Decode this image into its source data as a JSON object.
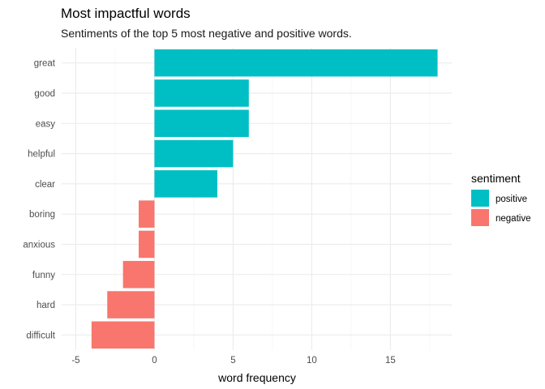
{
  "chart_data": {
    "type": "bar",
    "orientation": "horizontal",
    "title": "Most impactful words",
    "subtitle": "Sentiments of the top 5 most negative and positive words.",
    "xlabel": "word frequency",
    "ylabel": "",
    "xlim": [
      -5,
      18
    ],
    "xticks": [
      -5,
      0,
      5,
      10,
      15
    ],
    "grid": true,
    "legend": {
      "title": "sentiment",
      "position": "right"
    },
    "categories": [
      "great",
      "good",
      "easy",
      "helpful",
      "clear",
      "boring",
      "anxious",
      "funny",
      "hard",
      "difficult"
    ],
    "values": [
      18,
      6,
      6,
      5,
      4,
      -1,
      -1,
      -2,
      -3,
      -4
    ],
    "sentiment": [
      "positive",
      "positive",
      "positive",
      "positive",
      "positive",
      "negative",
      "negative",
      "negative",
      "negative",
      "negative"
    ],
    "series": [
      {
        "name": "positive",
        "color": "#00BFC4"
      },
      {
        "name": "negative",
        "color": "#F8766D"
      }
    ]
  }
}
